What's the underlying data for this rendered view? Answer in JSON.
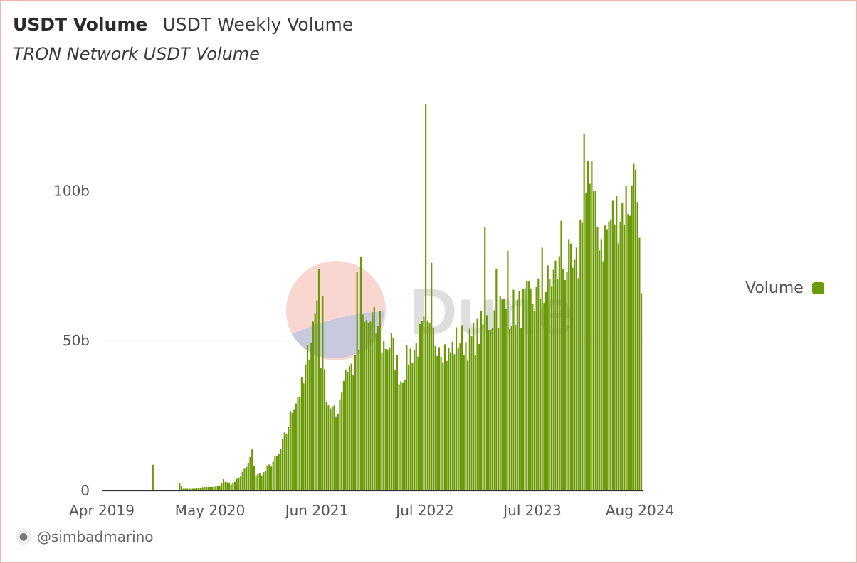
{
  "header": {
    "title": "USDT Volume",
    "subtitle": "USDT Weekly Volume",
    "chart_name": "TRON Network USDT Volume"
  },
  "legend": {
    "label": "Volume",
    "color": "#6b9a06"
  },
  "footer": {
    "author": "@simbadmarino",
    "avatar_icon": "user-avatar-icon"
  },
  "watermark": {
    "text": "Dune"
  },
  "colors": {
    "bar": "#6b9a06",
    "border": "#f2b3a8",
    "grid": "#e8e8e8"
  },
  "chart_data": {
    "type": "bar",
    "title": "TRON Network USDT Volume",
    "xlabel": "",
    "ylabel": "",
    "grid": true,
    "legend_position": "right",
    "series": [
      {
        "name": "Volume"
      }
    ],
    "x_tick_labels": [
      "Apr 2019",
      "May 2020",
      "Jun 2021",
      "Jul 2022",
      "Jul 2023",
      "Aug 2024"
    ],
    "y_tick_labels": [
      "0",
      "50b",
      "100b"
    ],
    "y_ticks": [
      0,
      50,
      100
    ],
    "ylim": [
      0,
      130
    ],
    "y_unit": "billion USD",
    "x_range": [
      "2019-04-01",
      "2024-08-26"
    ],
    "interval": "weekly",
    "anchors": [
      [
        "2019-04-01",
        0.1
      ],
      [
        "2019-09-23",
        0.1
      ],
      [
        "2019-09-30",
        10
      ],
      [
        "2019-10-07",
        0.1
      ],
      [
        "2019-12-30",
        0.2
      ],
      [
        "2020-01-06",
        2.5
      ],
      [
        "2020-01-20",
        0.6
      ],
      [
        "2020-03-02",
        0.6
      ],
      [
        "2020-04-06",
        1.2
      ],
      [
        "2020-05-04",
        1.2
      ],
      [
        "2020-06-01",
        1.5
      ],
      [
        "2020-06-15",
        3.5
      ],
      [
        "2020-07-13",
        2.0
      ],
      [
        "2020-08-17",
        5.0
      ],
      [
        "2020-09-14",
        9.0
      ],
      [
        "2020-09-28",
        13
      ],
      [
        "2020-10-12",
        5.0
      ],
      [
        "2020-11-09",
        6.0
      ],
      [
        "2020-12-07",
        9.0
      ],
      [
        "2021-01-04",
        12
      ],
      [
        "2021-02-01",
        20
      ],
      [
        "2021-03-01",
        30
      ],
      [
        "2021-04-05",
        36
      ],
      [
        "2021-04-26",
        50
      ],
      [
        "2021-05-17",
        60
      ],
      [
        "2021-05-24",
        66
      ],
      [
        "2021-06-07",
        45
      ],
      [
        "2021-07-05",
        30
      ],
      [
        "2021-08-02",
        25
      ],
      [
        "2021-09-06",
        42
      ],
      [
        "2021-10-11",
        42
      ],
      [
        "2021-11-08",
        55
      ],
      [
        "2021-12-13",
        58
      ],
      [
        "2022-01-17",
        50
      ],
      [
        "2022-02-21",
        50
      ],
      [
        "2022-03-28",
        38
      ],
      [
        "2022-04-25",
        46
      ],
      [
        "2022-05-30",
        50
      ],
      [
        "2022-06-20",
        54
      ],
      [
        "2022-07-11",
        52
      ],
      [
        "2022-08-15",
        52
      ],
      [
        "2022-09-19",
        46
      ],
      [
        "2022-10-24",
        52
      ],
      [
        "2022-12-05",
        50
      ],
      [
        "2023-01-09",
        54
      ],
      [
        "2023-02-13",
        58
      ],
      [
        "2023-03-20",
        62
      ],
      [
        "2023-05-01",
        62
      ],
      [
        "2023-06-05",
        62
      ],
      [
        "2023-07-10",
        64
      ],
      [
        "2023-08-14",
        66
      ],
      [
        "2023-09-18",
        70
      ],
      [
        "2023-10-23",
        75
      ],
      [
        "2023-11-27",
        78
      ],
      [
        "2023-12-25",
        72
      ],
      [
        "2024-01-08",
        78
      ],
      [
        "2024-01-22",
        100
      ],
      [
        "2024-02-19",
        103
      ],
      [
        "2024-03-11",
        92
      ],
      [
        "2024-04-08",
        85
      ],
      [
        "2024-05-06",
        92
      ],
      [
        "2024-06-10",
        96
      ],
      [
        "2024-07-15",
        100
      ],
      [
        "2024-08-12",
        100
      ],
      [
        "2024-08-19",
        96
      ],
      [
        "2024-08-26",
        63
      ]
    ],
    "spikes": [
      [
        "2021-05-31",
        74
      ],
      [
        "2021-06-14",
        65
      ],
      [
        "2021-10-18",
        73
      ],
      [
        "2021-11-01",
        78
      ],
      [
        "2022-01-10",
        60
      ],
      [
        "2022-06-27",
        129
      ],
      [
        "2022-07-18",
        76
      ],
      [
        "2023-01-30",
        88
      ],
      [
        "2023-03-13",
        74
      ],
      [
        "2023-04-24",
        80
      ],
      [
        "2023-08-28",
        81
      ],
      [
        "2023-11-06",
        90
      ],
      [
        "2024-01-29",
        119
      ],
      [
        "2024-02-12",
        110
      ],
      [
        "2024-02-26",
        110
      ],
      [
        "2024-07-29",
        109
      ],
      [
        "2024-08-05",
        107
      ]
    ]
  }
}
